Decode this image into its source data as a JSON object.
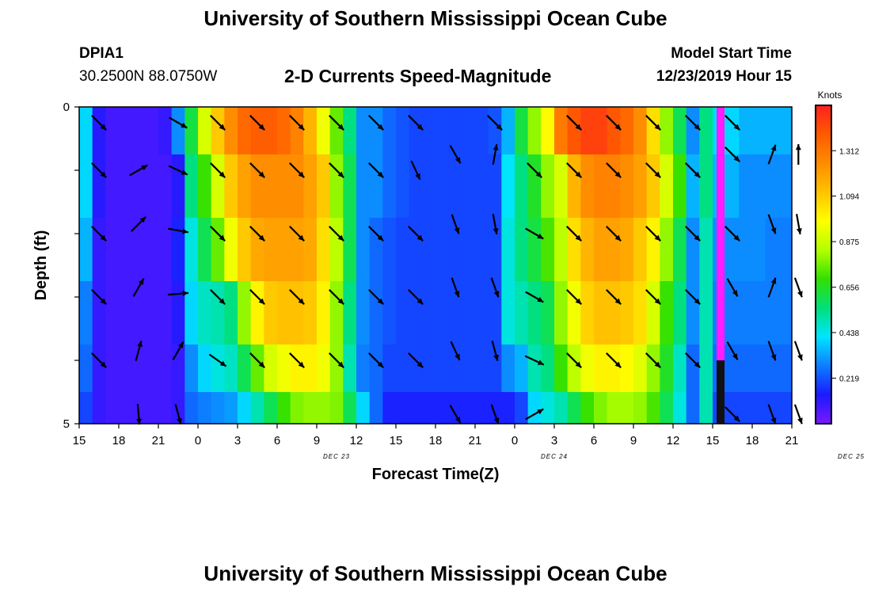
{
  "header": {
    "title": "University of Southern Mississippi Ocean Cube",
    "station_id": "DPIA1",
    "station_coords": "30.2500N 88.0750W",
    "subtitle": "2-D Currents Speed-Magnitude",
    "model_label": "Model Start Time",
    "model_time": "12/23/2019 Hour 15"
  },
  "footer": {
    "title": "University of Southern Mississippi Ocean Cube"
  },
  "colors": {
    "colormap": [
      "#7b17ff",
      "#1a1aff",
      "#0d7dff",
      "#00e5ff",
      "#00e07a",
      "#33e000",
      "#b2ff00",
      "#ffff00",
      "#ffc400",
      "#ff8c00",
      "#ff5a00",
      "#ff1f1f"
    ],
    "missing_column": "#ff1cff",
    "frame": "#000000"
  },
  "chart_data": {
    "type": "heatmap",
    "xlabel": "Forecast Time(Z)",
    "ylabel": "Depth (ft)",
    "x_tick_labels": [
      "15",
      "18",
      "21",
      "0",
      "3",
      "6",
      "9",
      "12",
      "15",
      "18",
      "21",
      "0",
      "3",
      "6",
      "9",
      "12",
      "15",
      "18",
      "21"
    ],
    "day_labels": [
      {
        "label": "DEC 23",
        "hour": 19.5
      },
      {
        "label": "DEC 24",
        "hour": 36
      },
      {
        "label": "DEC 25",
        "hour": 58.5
      }
    ],
    "y_tick_labels": [
      "0",
      "5"
    ],
    "ylim": [
      0,
      5
    ],
    "xlim_hours_from_start": [
      0,
      54
    ],
    "colorbar": {
      "label": "Knots",
      "ticks": [
        0.219,
        0.438,
        0.656,
        0.875,
        1.094,
        1.312
      ],
      "range": [
        0,
        1.53
      ]
    },
    "depth_layers": [
      0.25,
      1.25,
      2.25,
      3.25,
      4.25,
      4.75
    ],
    "speed_knots": [
      [
        0.4,
        0.12,
        0.08,
        0.08,
        0.08,
        0.08,
        0.1,
        0.3,
        0.62,
        0.9,
        1.1,
        1.25,
        1.35,
        1.38,
        1.38,
        1.35,
        1.28,
        1.15,
        0.95,
        0.75,
        0.55,
        0.3,
        0.3,
        0.25,
        0.22,
        0.2,
        0.2,
        0.2,
        0.2,
        0.2,
        0.2,
        0.22,
        0.35,
        0.62,
        0.8,
        0.98,
        1.3,
        1.4,
        1.45,
        1.45,
        1.4,
        1.35,
        1.25,
        1.05,
        0.8,
        0.6,
        0.3,
        0.55,
        0.4,
        0.4,
        0.35,
        0.35,
        0.35,
        0.35
      ],
      [
        0.4,
        0.12,
        0.08,
        0.08,
        0.08,
        0.08,
        0.08,
        0.12,
        0.55,
        0.7,
        0.9,
        1.1,
        1.2,
        1.25,
        1.25,
        1.25,
        1.25,
        1.2,
        1.1,
        0.8,
        0.6,
        0.3,
        0.3,
        0.25,
        0.22,
        0.2,
        0.2,
        0.2,
        0.2,
        0.2,
        0.2,
        0.2,
        0.42,
        0.55,
        0.65,
        0.8,
        0.9,
        1.15,
        1.25,
        1.28,
        1.28,
        1.25,
        1.2,
        1.1,
        0.9,
        0.7,
        0.35,
        0.55,
        0.35,
        0.35,
        0.3,
        0.3,
        0.3,
        0.3
      ],
      [
        0.35,
        0.1,
        0.08,
        0.08,
        0.08,
        0.08,
        0.08,
        0.15,
        0.45,
        0.6,
        0.75,
        0.95,
        1.1,
        1.18,
        1.2,
        1.2,
        1.2,
        1.18,
        1.05,
        0.85,
        0.6,
        0.3,
        0.25,
        0.22,
        0.2,
        0.2,
        0.2,
        0.2,
        0.2,
        0.2,
        0.2,
        0.2,
        0.45,
        0.55,
        0.62,
        0.72,
        0.85,
        1.05,
        1.15,
        1.2,
        1.2,
        1.18,
        1.1,
        1.0,
        0.8,
        0.6,
        0.3,
        0.5,
        0.3,
        0.3,
        0.3,
        0.3,
        0.28,
        0.28
      ],
      [
        0.28,
        0.1,
        0.08,
        0.08,
        0.08,
        0.08,
        0.08,
        0.12,
        0.4,
        0.48,
        0.5,
        0.55,
        0.8,
        1.0,
        1.1,
        1.12,
        1.12,
        1.1,
        1.0,
        0.8,
        0.55,
        0.3,
        0.25,
        0.22,
        0.2,
        0.2,
        0.2,
        0.2,
        0.2,
        0.2,
        0.2,
        0.2,
        0.45,
        0.5,
        0.55,
        0.6,
        0.8,
        0.95,
        1.08,
        1.12,
        1.12,
        1.1,
        1.05,
        0.9,
        0.7,
        0.55,
        0.3,
        0.5,
        0.28,
        0.28,
        0.28,
        0.28,
        0.28,
        0.28
      ],
      [
        0.25,
        0.1,
        0.08,
        0.08,
        0.08,
        0.08,
        0.08,
        0.1,
        0.3,
        0.4,
        0.45,
        0.48,
        0.6,
        0.75,
        0.9,
        0.95,
        1.0,
        1.0,
        0.95,
        0.8,
        0.5,
        0.28,
        0.25,
        0.2,
        0.2,
        0.2,
        0.2,
        0.2,
        0.2,
        0.2,
        0.2,
        0.2,
        0.3,
        0.35,
        0.5,
        0.55,
        0.7,
        0.85,
        0.95,
        1.0,
        1.0,
        0.98,
        0.92,
        0.8,
        0.65,
        0.48,
        0.25,
        0.5,
        0.25,
        0.25,
        0.25,
        0.25,
        0.25,
        0.25
      ],
      [
        0.2,
        0.1,
        0.08,
        0.08,
        0.08,
        0.08,
        0.08,
        0.1,
        0.25,
        0.28,
        0.3,
        0.32,
        0.4,
        0.5,
        0.6,
        0.7,
        0.78,
        0.8,
        0.8,
        0.78,
        0.6,
        0.4,
        0.25,
        0.15,
        0.15,
        0.15,
        0.15,
        0.15,
        0.15,
        0.15,
        0.15,
        0.15,
        0.15,
        0.2,
        0.4,
        0.45,
        0.5,
        0.6,
        0.7,
        0.78,
        0.82,
        0.82,
        0.8,
        0.72,
        0.6,
        0.45,
        0.25,
        0.5,
        0.2,
        0.2,
        0.2,
        0.2,
        0.2,
        0.2
      ]
    ],
    "vectors": [
      {
        "hour": 1.5,
        "depth": 0.25,
        "dir": 135
      },
      {
        "hour": 7.5,
        "depth": 0.25,
        "dir": 120
      },
      {
        "hour": 10.5,
        "depth": 0.25,
        "dir": 135
      },
      {
        "hour": 13.5,
        "depth": 0.25,
        "dir": 135
      },
      {
        "hour": 16.5,
        "depth": 0.25,
        "dir": 135
      },
      {
        "hour": 19.5,
        "depth": 0.25,
        "dir": 135
      },
      {
        "hour": 22.5,
        "depth": 0.25,
        "dir": 135
      },
      {
        "hour": 25.5,
        "depth": 0.25,
        "dir": 135
      },
      {
        "hour": 31.5,
        "depth": 0.25,
        "dir": 135
      },
      {
        "hour": 37.5,
        "depth": 0.25,
        "dir": 135
      },
      {
        "hour": 40.5,
        "depth": 0.25,
        "dir": 135
      },
      {
        "hour": 43.5,
        "depth": 0.25,
        "dir": 135
      },
      {
        "hour": 46.5,
        "depth": 0.25,
        "dir": 135
      },
      {
        "hour": 49.5,
        "depth": 0.25,
        "dir": 135
      },
      {
        "hour": 1.5,
        "depth": 1.0,
        "dir": 135
      },
      {
        "hour": 4.5,
        "depth": 1.0,
        "dir": 60
      },
      {
        "hour": 7.5,
        "depth": 1.0,
        "dir": 115
      },
      {
        "hour": 10.5,
        "depth": 1.0,
        "dir": 135
      },
      {
        "hour": 13.5,
        "depth": 1.0,
        "dir": 135
      },
      {
        "hour": 16.5,
        "depth": 1.0,
        "dir": 135
      },
      {
        "hour": 19.5,
        "depth": 1.0,
        "dir": 135
      },
      {
        "hour": 22.5,
        "depth": 1.0,
        "dir": 135
      },
      {
        "hour": 25.5,
        "depth": 1.0,
        "dir": 155
      },
      {
        "hour": 28.5,
        "depth": 0.75,
        "dir": 150
      },
      {
        "hour": 31.5,
        "depth": 0.75,
        "dir": 10
      },
      {
        "hour": 34.5,
        "depth": 1.0,
        "dir": 135
      },
      {
        "hour": 37.5,
        "depth": 1.0,
        "dir": 135
      },
      {
        "hour": 40.5,
        "depth": 1.0,
        "dir": 135
      },
      {
        "hour": 43.5,
        "depth": 1.0,
        "dir": 135
      },
      {
        "hour": 46.5,
        "depth": 1.0,
        "dir": 135
      },
      {
        "hour": 49.5,
        "depth": 0.75,
        "dir": 135
      },
      {
        "hour": 52.5,
        "depth": 0.75,
        "dir": 20
      },
      {
        "hour": 54.5,
        "depth": 0.75,
        "dir": 0
      },
      {
        "hour": 1.5,
        "depth": 2.0,
        "dir": 135
      },
      {
        "hour": 4.5,
        "depth": 1.85,
        "dir": 45
      },
      {
        "hour": 7.5,
        "depth": 1.95,
        "dir": 100
      },
      {
        "hour": 10.5,
        "depth": 2.0,
        "dir": 135
      },
      {
        "hour": 13.5,
        "depth": 2.0,
        "dir": 135
      },
      {
        "hour": 16.5,
        "depth": 2.0,
        "dir": 135
      },
      {
        "hour": 19.5,
        "depth": 2.0,
        "dir": 135
      },
      {
        "hour": 22.5,
        "depth": 2.0,
        "dir": 135
      },
      {
        "hour": 25.5,
        "depth": 2.0,
        "dir": 135
      },
      {
        "hour": 28.5,
        "depth": 1.85,
        "dir": 160
      },
      {
        "hour": 31.5,
        "depth": 1.85,
        "dir": 170
      },
      {
        "hour": 34.5,
        "depth": 2.0,
        "dir": 120
      },
      {
        "hour": 37.5,
        "depth": 2.0,
        "dir": 135
      },
      {
        "hour": 40.5,
        "depth": 2.0,
        "dir": 135
      },
      {
        "hour": 43.5,
        "depth": 2.0,
        "dir": 135
      },
      {
        "hour": 46.5,
        "depth": 2.0,
        "dir": 135
      },
      {
        "hour": 49.5,
        "depth": 2.0,
        "dir": 135
      },
      {
        "hour": 52.5,
        "depth": 1.85,
        "dir": 160
      },
      {
        "hour": 54.5,
        "depth": 1.85,
        "dir": 170
      },
      {
        "hour": 1.5,
        "depth": 3.0,
        "dir": 135
      },
      {
        "hour": 4.5,
        "depth": 2.85,
        "dir": 30
      },
      {
        "hour": 7.5,
        "depth": 2.95,
        "dir": 85
      },
      {
        "hour": 10.5,
        "depth": 3.0,
        "dir": 135
      },
      {
        "hour": 13.5,
        "depth": 3.0,
        "dir": 135
      },
      {
        "hour": 16.5,
        "depth": 3.0,
        "dir": 135
      },
      {
        "hour": 19.5,
        "depth": 3.0,
        "dir": 135
      },
      {
        "hour": 22.5,
        "depth": 3.0,
        "dir": 135
      },
      {
        "hour": 25.5,
        "depth": 3.0,
        "dir": 135
      },
      {
        "hour": 28.5,
        "depth": 2.85,
        "dir": 160
      },
      {
        "hour": 31.5,
        "depth": 2.85,
        "dir": 160
      },
      {
        "hour": 34.5,
        "depth": 3.0,
        "dir": 120
      },
      {
        "hour": 37.5,
        "depth": 3.0,
        "dir": 135
      },
      {
        "hour": 40.5,
        "depth": 3.0,
        "dir": 135
      },
      {
        "hour": 43.5,
        "depth": 3.0,
        "dir": 135
      },
      {
        "hour": 46.5,
        "depth": 3.0,
        "dir": 135
      },
      {
        "hour": 49.5,
        "depth": 2.85,
        "dir": 150
      },
      {
        "hour": 52.5,
        "depth": 2.85,
        "dir": 20
      },
      {
        "hour": 54.5,
        "depth": 2.85,
        "dir": 160
      },
      {
        "hour": 1.5,
        "depth": 4.0,
        "dir": 135
      },
      {
        "hour": 4.5,
        "depth": 3.85,
        "dir": 15
      },
      {
        "hour": 7.5,
        "depth": 3.85,
        "dir": 30
      },
      {
        "hour": 10.5,
        "depth": 4.0,
        "dir": 125
      },
      {
        "hour": 13.5,
        "depth": 4.0,
        "dir": 135
      },
      {
        "hour": 16.5,
        "depth": 4.0,
        "dir": 135
      },
      {
        "hour": 19.5,
        "depth": 4.0,
        "dir": 135
      },
      {
        "hour": 22.5,
        "depth": 4.0,
        "dir": 135
      },
      {
        "hour": 25.5,
        "depth": 4.0,
        "dir": 135
      },
      {
        "hour": 28.5,
        "depth": 3.85,
        "dir": 155
      },
      {
        "hour": 31.5,
        "depth": 3.85,
        "dir": 165
      },
      {
        "hour": 34.5,
        "depth": 4.0,
        "dir": 115
      },
      {
        "hour": 37.5,
        "depth": 4.0,
        "dir": 135
      },
      {
        "hour": 40.5,
        "depth": 4.0,
        "dir": 135
      },
      {
        "hour": 43.5,
        "depth": 4.0,
        "dir": 135
      },
      {
        "hour": 46.5,
        "depth": 4.0,
        "dir": 135
      },
      {
        "hour": 49.5,
        "depth": 3.85,
        "dir": 150
      },
      {
        "hour": 52.5,
        "depth": 3.85,
        "dir": 160
      },
      {
        "hour": 54.5,
        "depth": 3.85,
        "dir": 160
      },
      {
        "hour": 4.5,
        "depth": 4.85,
        "dir": 175
      },
      {
        "hour": 7.5,
        "depth": 4.85,
        "dir": 165
      },
      {
        "hour": 28.5,
        "depth": 4.85,
        "dir": 150
      },
      {
        "hour": 31.5,
        "depth": 4.85,
        "dir": 160
      },
      {
        "hour": 34.5,
        "depth": 4.85,
        "dir": 60
      },
      {
        "hour": 49.5,
        "depth": 4.85,
        "dir": 135
      },
      {
        "hour": 52.5,
        "depth": 4.85,
        "dir": 160
      },
      {
        "hour": 54.5,
        "depth": 4.85,
        "dir": 160
      }
    ]
  }
}
